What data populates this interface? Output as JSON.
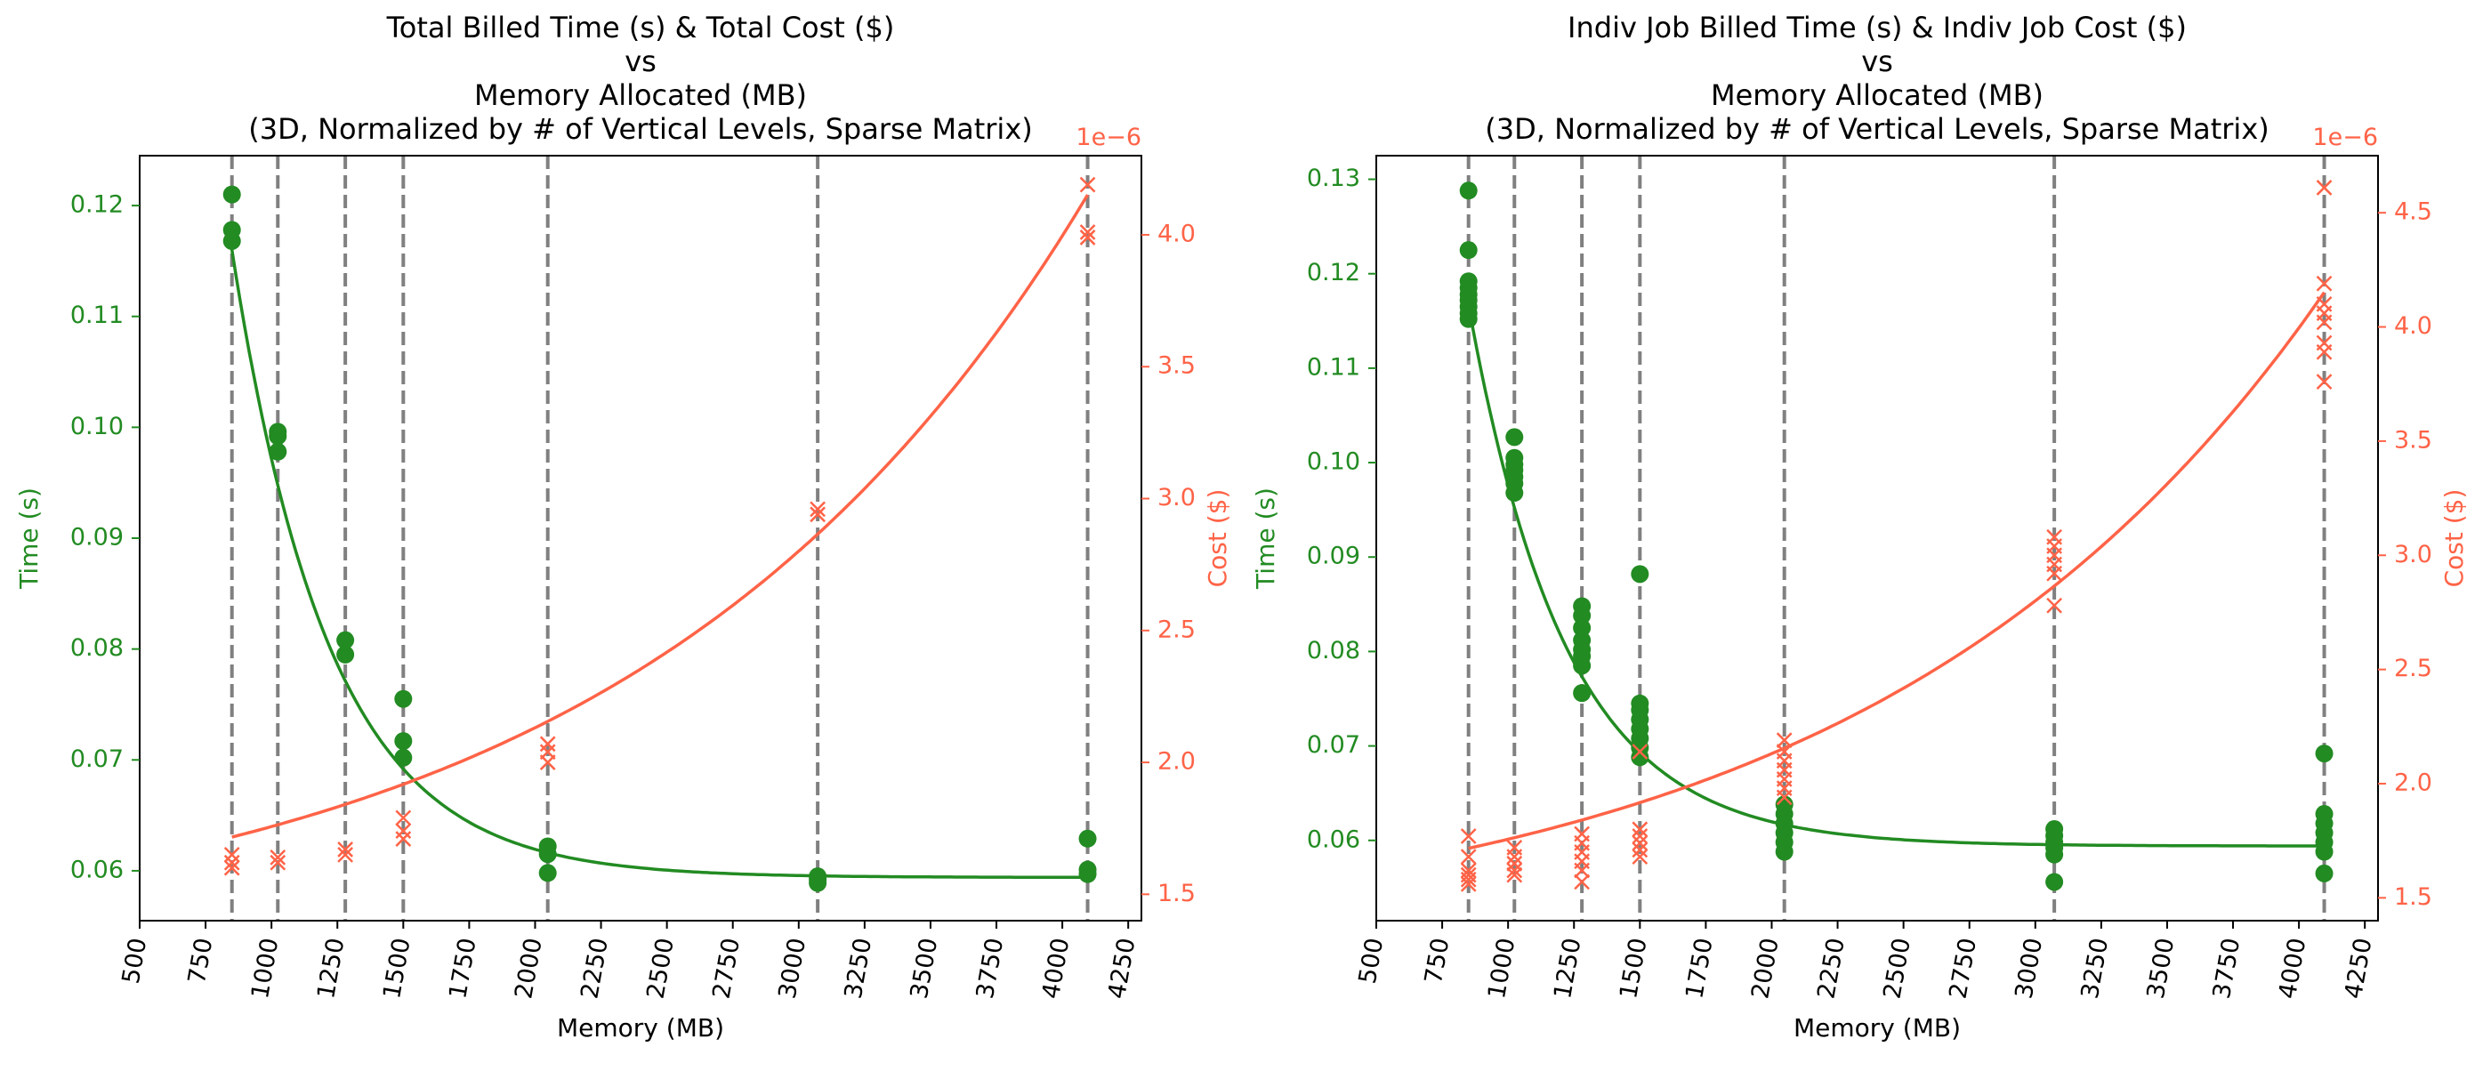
{
  "colors": {
    "time": "#228b22",
    "cost": "#ff6347",
    "vline": "#808080",
    "axis": "#000000"
  },
  "chart_data": [
    {
      "type": "scatter",
      "title_lines": [
        "Total Billed Time (s) & Total Cost ($)",
        "vs",
        "Memory Allocated (MB)",
        "(3D, Normalized by # of Vertical Levels, Sparse Matrix)"
      ],
      "xlabel": "Memory (MB)",
      "ylabel": "Time (s)",
      "y2label": "Cost ($)",
      "y2_offset_label": "1e−6",
      "xlim": [
        500,
        4300
      ],
      "ylim": [
        0.0555,
        0.1245
      ],
      "y2lim": [
        1.4,
        4.3
      ],
      "xticks": [
        500,
        750,
        1000,
        1250,
        1500,
        1750,
        2000,
        2250,
        2500,
        2750,
        3000,
        3250,
        3500,
        3750,
        4000,
        4250
      ],
      "yticks": [
        0.06,
        0.07,
        0.08,
        0.09,
        0.1,
        0.11,
        0.12
      ],
      "ytick_labels": [
        "0.06",
        "0.07",
        "0.08",
        "0.09",
        "0.10",
        "0.11",
        "0.12"
      ],
      "y2ticks": [
        1.5,
        2.0,
        2.5,
        3.0,
        3.5,
        4.0
      ],
      "y2tick_labels": [
        "1.5",
        "2.0",
        "2.5",
        "3.0",
        "3.5",
        "4.0"
      ],
      "memory_levels": [
        850,
        1024,
        1280,
        1500,
        2048,
        3072,
        4096
      ],
      "time_points": [
        [
          850,
          0.121
        ],
        [
          850,
          0.1178
        ],
        [
          850,
          0.1168
        ],
        [
          1024,
          0.0996
        ],
        [
          1024,
          0.0992
        ],
        [
          1024,
          0.0978
        ],
        [
          1280,
          0.0808
        ],
        [
          1280,
          0.0795
        ],
        [
          1500,
          0.0755
        ],
        [
          1500,
          0.0717
        ],
        [
          1500,
          0.0702
        ],
        [
          2048,
          0.0622
        ],
        [
          2048,
          0.0615
        ],
        [
          2048,
          0.0598
        ],
        [
          3072,
          0.0595
        ],
        [
          3072,
          0.0592
        ],
        [
          3072,
          0.0589
        ],
        [
          4096,
          0.0629
        ],
        [
          4096,
          0.0601
        ],
        [
          4096,
          0.0597
        ]
      ],
      "cost_points": [
        [
          850,
          1.65
        ],
        [
          850,
          1.62
        ],
        [
          850,
          1.6
        ],
        [
          1024,
          1.64
        ],
        [
          1024,
          1.62
        ],
        [
          1280,
          1.67
        ],
        [
          1280,
          1.65
        ],
        [
          1500,
          1.79
        ],
        [
          1500,
          1.74
        ],
        [
          1500,
          1.71
        ],
        [
          2048,
          2.07
        ],
        [
          2048,
          2.04
        ],
        [
          2048,
          2.0
        ],
        [
          3072,
          2.96
        ],
        [
          3072,
          2.94
        ],
        [
          4096,
          4.19
        ],
        [
          4096,
          4.01
        ],
        [
          4096,
          3.99
        ]
      ],
      "time_fit": {
        "a": 0.0594,
        "b": 0.0566,
        "k": 0.0027
      },
      "cost_fit": {
        "a": 1.28,
        "b": 0.2669,
        "k": 0.00058
      }
    },
    {
      "type": "scatter",
      "title_lines": [
        "Indiv Job Billed Time (s) & Indiv Job Cost ($)",
        "vs",
        "Memory Allocated (MB)",
        "(3D, Normalized by # of Vertical Levels, Sparse Matrix)"
      ],
      "xlabel": "Memory (MB)",
      "ylabel": "Time (s)",
      "y2label": "Cost ($)",
      "y2_offset_label": "1e−6",
      "xlim": [
        500,
        4300
      ],
      "ylim": [
        0.0515,
        0.1325
      ],
      "y2lim": [
        1.4,
        4.75
      ],
      "xticks": [
        500,
        750,
        1000,
        1250,
        1500,
        1750,
        2000,
        2250,
        2500,
        2750,
        3000,
        3250,
        3500,
        3750,
        4000,
        4250
      ],
      "yticks": [
        0.06,
        0.07,
        0.08,
        0.09,
        0.1,
        0.11,
        0.12,
        0.13
      ],
      "ytick_labels": [
        "0.06",
        "0.07",
        "0.08",
        "0.09",
        "0.10",
        "0.11",
        "0.12",
        "0.13"
      ],
      "y2ticks": [
        1.5,
        2.0,
        2.5,
        3.0,
        3.5,
        4.0,
        4.5
      ],
      "y2tick_labels": [
        "1.5",
        "2.0",
        "2.5",
        "3.0",
        "3.5",
        "4.0",
        "4.5"
      ],
      "memory_levels": [
        850,
        1024,
        1280,
        1500,
        2048,
        3072,
        4096
      ],
      "time_points": [
        [
          850,
          0.1288
        ],
        [
          850,
          0.1225
        ],
        [
          850,
          0.1192
        ],
        [
          850,
          0.1185
        ],
        [
          850,
          0.1178
        ],
        [
          850,
          0.1172
        ],
        [
          850,
          0.1165
        ],
        [
          850,
          0.1158
        ],
        [
          850,
          0.1152
        ],
        [
          1024,
          0.1027
        ],
        [
          1024,
          0.1005
        ],
        [
          1024,
          0.0998
        ],
        [
          1024,
          0.0992
        ],
        [
          1024,
          0.0985
        ],
        [
          1024,
          0.0978
        ],
        [
          1024,
          0.0968
        ],
        [
          1280,
          0.0848
        ],
        [
          1280,
          0.0838
        ],
        [
          1280,
          0.0825
        ],
        [
          1280,
          0.0812
        ],
        [
          1280,
          0.0802
        ],
        [
          1280,
          0.0795
        ],
        [
          1280,
          0.0785
        ],
        [
          1280,
          0.0756
        ],
        [
          1500,
          0.0882
        ],
        [
          1500,
          0.0745
        ],
        [
          1500,
          0.0738
        ],
        [
          1500,
          0.0728
        ],
        [
          1500,
          0.0718
        ],
        [
          1500,
          0.0708
        ],
        [
          1500,
          0.0698
        ],
        [
          1500,
          0.0688
        ],
        [
          2048,
          0.0638
        ],
        [
          2048,
          0.0628
        ],
        [
          2048,
          0.0618
        ],
        [
          2048,
          0.0608
        ],
        [
          2048,
          0.0598
        ],
        [
          2048,
          0.0588
        ],
        [
          3072,
          0.0612
        ],
        [
          3072,
          0.0605
        ],
        [
          3072,
          0.0598
        ],
        [
          3072,
          0.0592
        ],
        [
          3072,
          0.0585
        ],
        [
          3072,
          0.0556
        ],
        [
          4096,
          0.0692
        ],
        [
          4096,
          0.0628
        ],
        [
          4096,
          0.0618
        ],
        [
          4096,
          0.0608
        ],
        [
          4096,
          0.0598
        ],
        [
          4096,
          0.0588
        ],
        [
          4096,
          0.0565
        ]
      ],
      "cost_points": [
        [
          850,
          1.77
        ],
        [
          850,
          1.68
        ],
        [
          850,
          1.62
        ],
        [
          850,
          1.6
        ],
        [
          850,
          1.58
        ],
        [
          850,
          1.56
        ],
        [
          1024,
          1.72
        ],
        [
          1024,
          1.68
        ],
        [
          1024,
          1.65
        ],
        [
          1024,
          1.62
        ],
        [
          1024,
          1.6
        ],
        [
          1280,
          1.78
        ],
        [
          1280,
          1.74
        ],
        [
          1280,
          1.7
        ],
        [
          1280,
          1.66
        ],
        [
          1280,
          1.62
        ],
        [
          1280,
          1.57
        ],
        [
          1500,
          2.14
        ],
        [
          1500,
          1.8
        ],
        [
          1500,
          1.77
        ],
        [
          1500,
          1.74
        ],
        [
          1500,
          1.71
        ],
        [
          1500,
          1.68
        ],
        [
          2048,
          2.19
        ],
        [
          2048,
          2.14
        ],
        [
          2048,
          2.1
        ],
        [
          2048,
          2.06
        ],
        [
          2048,
          2.02
        ],
        [
          2048,
          1.98
        ],
        [
          2048,
          1.94
        ],
        [
          3072,
          3.08
        ],
        [
          3072,
          3.04
        ],
        [
          3072,
          3.0
        ],
        [
          3072,
          2.96
        ],
        [
          3072,
          2.92
        ],
        [
          3072,
          2.78
        ],
        [
          4096,
          4.61
        ],
        [
          4096,
          4.19
        ],
        [
          4096,
          4.1
        ],
        [
          4096,
          4.06
        ],
        [
          4096,
          4.02
        ],
        [
          4096,
          3.93
        ],
        [
          4096,
          3.89
        ],
        [
          4096,
          3.76
        ]
      ],
      "time_fit": {
        "a": 0.0594,
        "b": 0.0573,
        "k": 0.0027
      },
      "cost_fit": {
        "a": 1.28,
        "b": 0.2669,
        "k": 0.00058
      }
    }
  ]
}
